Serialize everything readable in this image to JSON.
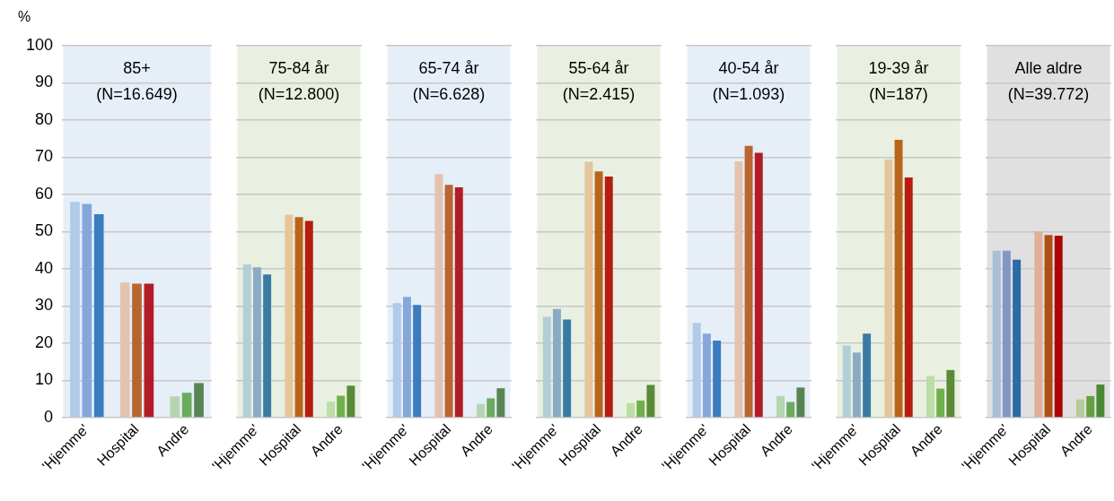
{
  "chart_data": [
    {
      "type": "bar",
      "title": "85+",
      "subtitle": "(N=16.649)",
      "ylabel": "%",
      "categories": [
        "'Hjemme'",
        "Hospital",
        "Andre"
      ],
      "ylim": [
        0,
        100
      ],
      "yticks": [
        0,
        10,
        20,
        30,
        40,
        50,
        60,
        70,
        80,
        90,
        100
      ],
      "grid": "y",
      "bands": [
        {
          "axis": "x",
          "from": "'Hjemme'",
          "to": "Andre",
          "color": "#e6eef8"
        }
      ],
      "series": [
        {
          "colors": [
            "#aecbe8",
            "#e3c3b0",
            "#b5d5b0"
          ],
          "values": [
            58,
            36.3,
            5.7
          ]
        },
        {
          "colors": [
            "#86a7d9",
            "#b96530",
            "#6aac5c"
          ],
          "values": [
            57.5,
            36,
            6.7
          ]
        },
        {
          "colors": [
            "#3a7cc0",
            "#b31c25",
            "#578552"
          ],
          "values": [
            54.7,
            36,
            9.3
          ]
        }
      ]
    },
    {
      "type": "bar",
      "title": "75-84 år",
      "subtitle": "(N=12.800)",
      "categories": [
        "'Hjemme'",
        "Hospital",
        "Andre"
      ],
      "ylim": [
        0,
        100
      ],
      "yticks": [
        0,
        10,
        20,
        30,
        40,
        50,
        60,
        70,
        80,
        90,
        100
      ],
      "grid": "y",
      "tick_labels": "x",
      "bands": [
        {
          "axis": "x",
          "from": "'Hjemme'",
          "to": "Andre",
          "color": "#e9f0e1"
        }
      ],
      "series": [
        {
          "colors": [
            "#b0cfd6",
            "#e4c59c",
            "#bcdda4"
          ],
          "values": [
            41.2,
            54.6,
            4.3
          ]
        },
        {
          "colors": [
            "#8aabc6",
            "#b8651c",
            "#70b04a"
          ],
          "values": [
            40.4,
            53.9,
            5.9
          ]
        },
        {
          "colors": [
            "#3a7ba6",
            "#b71c10",
            "#5a8a36"
          ],
          "values": [
            38.5,
            52.9,
            8.6
          ]
        }
      ]
    },
    {
      "type": "bar",
      "title": "65-74 år",
      "subtitle": "(N=6.628)",
      "categories": [
        "'Hjemme'",
        "Hospital",
        "Andre"
      ],
      "ylim": [
        0,
        100
      ],
      "yticks": [
        0,
        10,
        20,
        30,
        40,
        50,
        60,
        70,
        80,
        90,
        100
      ],
      "grid": "y",
      "tick_labels": "x",
      "bands": [
        {
          "axis": "x",
          "from": "'Hjemme'",
          "to": "Andre",
          "color": "#e6eef8"
        }
      ],
      "series": [
        {
          "colors": [
            "#aecbe8",
            "#e3c3b0",
            "#b5d5b0"
          ],
          "values": [
            30.8,
            65.5,
            3.7
          ]
        },
        {
          "colors": [
            "#86a7d9",
            "#b96530",
            "#6aac5c"
          ],
          "values": [
            32.5,
            62.6,
            5.2
          ]
        },
        {
          "colors": [
            "#3a7cc0",
            "#b31c25",
            "#578552"
          ],
          "values": [
            30.3,
            61.9,
            7.9
          ]
        }
      ]
    },
    {
      "type": "bar",
      "title": "55-64 år",
      "subtitle": "(N=2.415)",
      "categories": [
        "'Hjemme'",
        "Hospital",
        "Andre"
      ],
      "ylim": [
        0,
        100
      ],
      "yticks": [
        0,
        10,
        20,
        30,
        40,
        50,
        60,
        70,
        80,
        90,
        100
      ],
      "grid": "y",
      "tick_labels": "x",
      "bands": [
        {
          "axis": "x",
          "from": "'Hjemme'",
          "to": "Andre",
          "color": "#e9f0e1"
        }
      ],
      "series": [
        {
          "colors": [
            "#b0cfd6",
            "#e4c59c",
            "#bcdda4"
          ],
          "values": [
            27.1,
            68.8,
            3.9
          ]
        },
        {
          "colors": [
            "#8aabc6",
            "#b8651c",
            "#70b04a"
          ],
          "values": [
            29.2,
            66.2,
            4.6
          ]
        },
        {
          "colors": [
            "#3a7ba6",
            "#b71c10",
            "#5a8a36"
          ],
          "values": [
            26.4,
            64.8,
            8.8
          ]
        }
      ]
    },
    {
      "type": "bar",
      "title": "40-54 år",
      "subtitle": "(N=1.093)",
      "categories": [
        "'Hjemme'",
        "Hospital",
        "Andre"
      ],
      "ylim": [
        0,
        100
      ],
      "yticks": [
        0,
        10,
        20,
        30,
        40,
        50,
        60,
        70,
        80,
        90,
        100
      ],
      "grid": "y",
      "tick_labels": "x",
      "bands": [
        {
          "axis": "x",
          "from": "'Hjemme'",
          "to": "Andre",
          "color": "#e6eef8"
        }
      ],
      "series": [
        {
          "colors": [
            "#aecbe8",
            "#e3c3b0",
            "#b5d5b0"
          ],
          "values": [
            25.5,
            68.9,
            5.8
          ]
        },
        {
          "colors": [
            "#86a7d9",
            "#b96530",
            "#6aac5c"
          ],
          "values": [
            22.6,
            73.1,
            4.2
          ]
        },
        {
          "colors": [
            "#3a7cc0",
            "#b31c25",
            "#578552"
          ],
          "values": [
            20.7,
            71.2,
            8.1
          ]
        }
      ]
    },
    {
      "type": "bar",
      "title": "19-39 år",
      "subtitle": "(N=187)",
      "categories": [
        "'Hjemme'",
        "Hospital",
        "Andre"
      ],
      "ylim": [
        0,
        100
      ],
      "yticks": [
        0,
        10,
        20,
        30,
        40,
        50,
        60,
        70,
        80,
        90,
        100
      ],
      "grid": "y",
      "tick_labels": "x",
      "bands": [
        {
          "axis": "x",
          "from": "'Hjemme'",
          "to": "Andre",
          "color": "#e9f0e1"
        }
      ],
      "series": [
        {
          "colors": [
            "#b0cfd6",
            "#e4c59c",
            "#bcdda4"
          ],
          "values": [
            19.4,
            69.4,
            11.2
          ]
        },
        {
          "colors": [
            "#8aabc6",
            "#b8651c",
            "#70b04a"
          ],
          "values": [
            17.5,
            74.7,
            7.8
          ]
        },
        {
          "colors": [
            "#3a7ba6",
            "#b71c10",
            "#5a8a36"
          ],
          "values": [
            22.6,
            64.6,
            12.8
          ]
        }
      ]
    },
    {
      "type": "bar",
      "title": "Alle aldre",
      "subtitle": "(N=39.772)",
      "categories": [
        "'Hjemme'",
        "Hospital",
        "Andre"
      ],
      "ylim": [
        0,
        100
      ],
      "yticks": [
        0,
        10,
        20,
        30,
        40,
        50,
        60,
        70,
        80,
        90,
        100
      ],
      "grid": "y",
      "tick_labels": "x",
      "bands": [
        {
          "axis": "x",
          "from": "'Hjemme'",
          "to": "Andre",
          "color": "#e0e0e0"
        }
      ],
      "series": [
        {
          "colors": [
            "#a9bfd6",
            "#deb096",
            "#b5cc9c"
          ],
          "values": [
            44.9,
            50.1,
            4.9
          ]
        },
        {
          "colors": [
            "#8198c6",
            "#b04f14",
            "#66a03e"
          ],
          "values": [
            44.9,
            49.1,
            5.8
          ]
        },
        {
          "colors": [
            "#2e6aa5",
            "#b00404",
            "#4a8a36"
          ],
          "values": [
            42.5,
            48.9,
            8.9
          ]
        }
      ]
    }
  ]
}
